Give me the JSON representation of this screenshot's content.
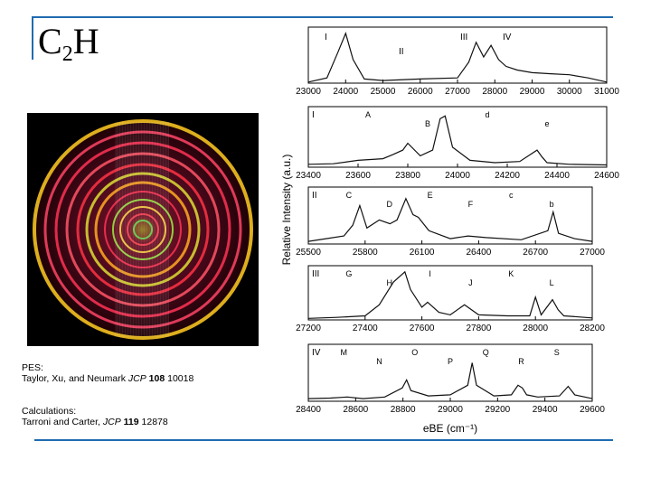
{
  "slide": {
    "title_main": "C",
    "title_sub": "2",
    "title_end": "H",
    "accent_color": "#1f6bb0"
  },
  "caption": {
    "pes_label": "PES:",
    "pes_authors": "Taylor, Xu, and Neumark",
    "pes_journal": "JCP",
    "pes_volume": "108",
    "pes_page": "10018",
    "calc_label": "Calculations:",
    "calc_authors": "Tarroni and Carter,",
    "calc_journal": "JCP",
    "calc_volume": "119",
    "calc_page": "12878"
  },
  "figure": {
    "ylabel": "Relative Intensity (a.u.)",
    "xlabel": "eBE (cm⁻¹)"
  },
  "chart_data": [
    {
      "type": "line",
      "panel_label": "",
      "xlim": [
        23000,
        31000
      ],
      "ticks": [
        "23000",
        "24000",
        "25000",
        "26000",
        "27000",
        "28000",
        "29000",
        "30000",
        "31000"
      ],
      "region_labels": [
        "I",
        "II",
        "III",
        "IV"
      ],
      "x": [
        23000,
        23500,
        23800,
        24000,
        24200,
        24500,
        25000,
        26000,
        27000,
        27300,
        27500,
        27700,
        27900,
        28100,
        28300,
        28600,
        29000,
        29500,
        30000,
        30500,
        31000
      ],
      "y": [
        0.02,
        0.1,
        0.6,
        0.95,
        0.45,
        0.08,
        0.05,
        0.08,
        0.1,
        0.4,
        0.78,
        0.5,
        0.72,
        0.45,
        0.32,
        0.25,
        0.2,
        0.18,
        0.16,
        0.1,
        0.02
      ]
    },
    {
      "type": "line",
      "panel_label": "I",
      "xlim": [
        23400,
        24600
      ],
      "ticks": [
        "23400",
        "23600",
        "23800",
        "24000",
        "24200",
        "24400",
        "24600"
      ],
      "peak_labels": [
        "A",
        "B",
        "d",
        "e"
      ],
      "x": [
        23400,
        23500,
        23600,
        23700,
        23740,
        23780,
        23800,
        23850,
        23900,
        23930,
        23950,
        23980,
        24050,
        24150,
        24250,
        24320,
        24340,
        24360,
        24450,
        24600
      ],
      "y": [
        0.05,
        0.06,
        0.12,
        0.15,
        0.22,
        0.3,
        0.42,
        0.2,
        0.3,
        0.85,
        0.9,
        0.35,
        0.12,
        0.08,
        0.1,
        0.3,
        0.18,
        0.08,
        0.05,
        0.04
      ]
    },
    {
      "type": "line",
      "panel_label": "II",
      "xlim": [
        25500,
        27100
      ],
      "ticks": [
        "25500",
        "25800",
        "26100",
        "26400",
        "26700",
        "27000"
      ],
      "peak_labels": [
        "C",
        "D",
        "E",
        "F",
        "c",
        "b"
      ],
      "x": [
        25500,
        25600,
        25700,
        25750,
        25790,
        25830,
        25900,
        25960,
        26000,
        26050,
        26090,
        26120,
        26180,
        26300,
        26400,
        26500,
        26700,
        26850,
        26880,
        26910,
        27000,
        27100
      ],
      "y": [
        0.05,
        0.1,
        0.15,
        0.35,
        0.72,
        0.3,
        0.45,
        0.38,
        0.45,
        0.85,
        0.55,
        0.5,
        0.25,
        0.1,
        0.15,
        0.12,
        0.08,
        0.25,
        0.6,
        0.2,
        0.1,
        0.05
      ]
    },
    {
      "type": "line",
      "panel_label": "III",
      "xlim": [
        27200,
        28200
      ],
      "ticks": [
        "27200",
        "27400",
        "27600",
        "27800",
        "28000",
        "28200"
      ],
      "peak_labels": [
        "G",
        "H",
        "I",
        "J",
        "K",
        "L"
      ],
      "x": [
        27200,
        27300,
        27400,
        27450,
        27500,
        27540,
        27560,
        27600,
        27620,
        27660,
        27700,
        27750,
        27800,
        27900,
        27980,
        28000,
        28020,
        28060,
        28080,
        28100,
        28200
      ],
      "y": [
        0.03,
        0.05,
        0.08,
        0.3,
        0.75,
        0.95,
        0.6,
        0.25,
        0.35,
        0.15,
        0.1,
        0.3,
        0.1,
        0.08,
        0.08,
        0.45,
        0.1,
        0.4,
        0.2,
        0.08,
        0.04
      ]
    },
    {
      "type": "line",
      "panel_label": "IV",
      "xlim": [
        28400,
        29700
      ],
      "ticks": [
        "28400",
        "28600",
        "28800",
        "29000",
        "29200",
        "29400",
        "29600"
      ],
      "peak_labels": [
        "M",
        "N",
        "O",
        "P",
        "Q",
        "R",
        "S"
      ],
      "x": [
        28400,
        28500,
        28580,
        28650,
        28750,
        28830,
        28850,
        28870,
        28950,
        29050,
        29130,
        29150,
        29170,
        29250,
        29330,
        29360,
        29380,
        29400,
        29450,
        29550,
        29590,
        29620,
        29700
      ],
      "y": [
        0.05,
        0.06,
        0.08,
        0.05,
        0.08,
        0.25,
        0.4,
        0.2,
        0.1,
        0.12,
        0.3,
        0.72,
        0.3,
        0.1,
        0.12,
        0.3,
        0.25,
        0.12,
        0.08,
        0.1,
        0.28,
        0.12,
        0.05
      ]
    }
  ]
}
